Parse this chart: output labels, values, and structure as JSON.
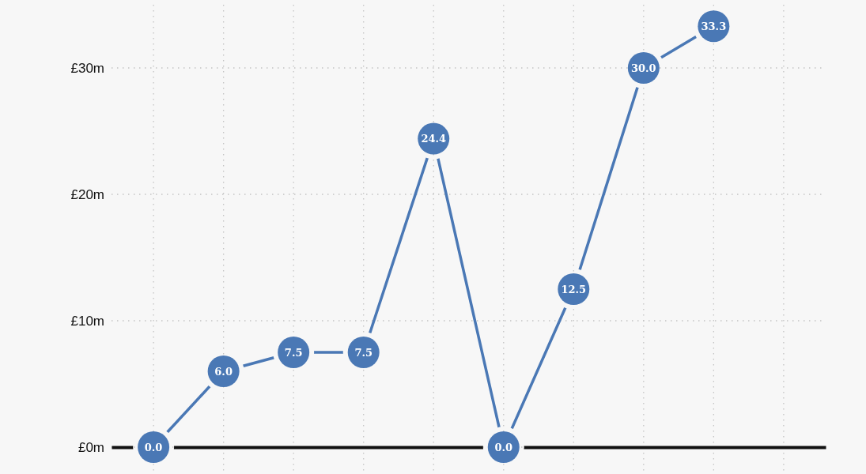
{
  "chart_data": {
    "type": "line",
    "categories": [
      null,
      null,
      null,
      null,
      null,
      null,
      null,
      null,
      null,
      null
    ],
    "values": [
      0,
      6,
      7.5,
      7.5,
      24.4,
      0,
      12.5,
      30,
      33.3,
      null
    ],
    "value_labels": [
      "0.0",
      "6.0",
      "7.5",
      "7.5",
      "24.4",
      "0.0",
      "12.5",
      "30.0",
      "33.3",
      null
    ],
    "color": "#4a78b5",
    "marker": "circle",
    "ylim": [
      0,
      35
    ],
    "yticks": [
      {
        "value": 0,
        "label": "£0m"
      },
      {
        "value": 10,
        "label": "£10m"
      },
      {
        "value": 20,
        "label": "£20m"
      },
      {
        "value": 30,
        "label": "£30m"
      }
    ],
    "grid": true,
    "tick_labels": "y"
  }
}
